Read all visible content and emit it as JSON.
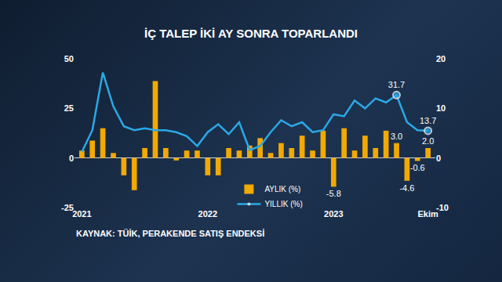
{
  "chart_data": {
    "type": "bar",
    "title": "İÇ TALEP İKİ AY SONRA TOPARLANDI",
    "annotations": [
      "KAYNAK: TÜİK, PERAKENDE SATIŞ ENDEKSİ"
    ],
    "categories": [
      "2021",
      null,
      null,
      null,
      null,
      null,
      null,
      null,
      null,
      null,
      null,
      null,
      "2022",
      null,
      null,
      null,
      null,
      null,
      null,
      null,
      null,
      null,
      null,
      null,
      "2023",
      null,
      null,
      null,
      null,
      null,
      null,
      null,
      null,
      "Ekim"
    ],
    "series": [
      {
        "name": "AYLIK (%)",
        "type": "bar",
        "color": "#f2a900",
        "axis": "y2",
        "values": [
          1.5,
          3.5,
          6.0,
          1.0,
          -3.5,
          -6.5,
          2.0,
          15.5,
          2.0,
          -0.5,
          1.5,
          1.5,
          -3.5,
          -3.5,
          2.0,
          1.5,
          2.5,
          4.0,
          1.0,
          3.0,
          2.0,
          4.5,
          1.5,
          5.5,
          -5.8,
          6.0,
          1.5,
          4.5,
          2.0,
          5.5,
          3.0,
          -4.6,
          -0.6,
          2.0
        ],
        "value_labels": [
          null,
          null,
          null,
          null,
          null,
          null,
          null,
          null,
          null,
          null,
          null,
          null,
          null,
          null,
          null,
          null,
          null,
          null,
          null,
          null,
          null,
          null,
          null,
          null,
          "-5.8",
          null,
          null,
          null,
          null,
          null,
          "3.0",
          "-4.6",
          "-0.6",
          "2.0"
        ]
      },
      {
        "name": "YILLIK (%)",
        "type": "line",
        "color": "#2ba8e6",
        "values": [
          3,
          14,
          43,
          26,
          16,
          14,
          15,
          14,
          14,
          13,
          11,
          6,
          13,
          17,
          12,
          18,
          4,
          6,
          13,
          19,
          16,
          18,
          13,
          14,
          22,
          21,
          29,
          25,
          30,
          28,
          31.7,
          18,
          14,
          13.7
        ],
        "value_labels": [
          null,
          null,
          null,
          null,
          null,
          null,
          null,
          null,
          null,
          null,
          null,
          null,
          null,
          null,
          null,
          null,
          null,
          null,
          null,
          null,
          null,
          null,
          null,
          null,
          null,
          null,
          null,
          null,
          null,
          null,
          "31.7",
          null,
          null,
          "13.7"
        ]
      }
    ],
    "ylim": [
      -25,
      50
    ],
    "yticks": [
      -25,
      0,
      25,
      50
    ],
    "y2lim": [
      -10,
      20
    ],
    "y2ticks": [
      -10,
      0,
      10,
      20
    ],
    "grid": false,
    "legend": "bottom",
    "data_labels": true
  }
}
